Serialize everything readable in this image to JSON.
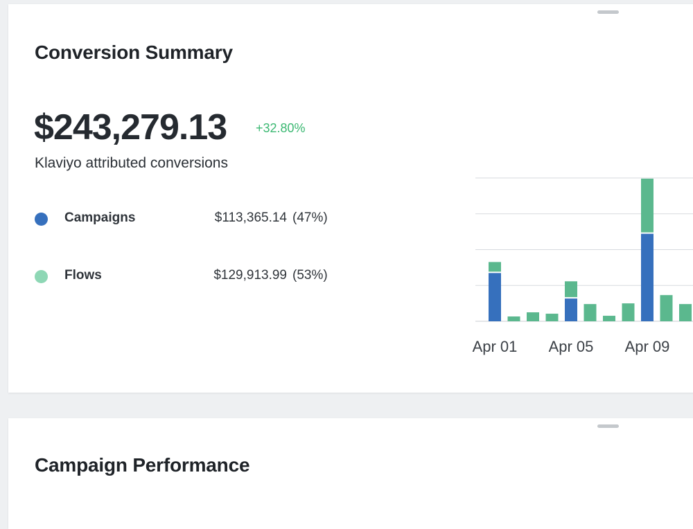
{
  "summary_card": {
    "title": "Conversion Summary",
    "total_value": "$243,279.13",
    "change": "+32.80%",
    "subtitle": "Klaviyo attributed conversions",
    "legend": [
      {
        "label": "Campaigns",
        "amount": "$113,365.14",
        "percent": "(47%)",
        "color": "#3670bd"
      },
      {
        "label": "Flows",
        "amount": "$129,913.99",
        "percent": "(53%)",
        "color": "#8ed7b5"
      }
    ]
  },
  "campaign_card": {
    "title": "Campaign Performance"
  },
  "colors": {
    "campaigns": "#3670bd",
    "flows": "#5bb88e",
    "positive": "#3bb872"
  },
  "chart_data": {
    "type": "bar",
    "stacked": true,
    "x_tick_labels": [
      "Apr 01",
      "Apr 05",
      "Apr 09"
    ],
    "categories": [
      "Apr 01",
      "Apr 02",
      "Apr 03",
      "Apr 04",
      "Apr 05",
      "Apr 06",
      "Apr 07",
      "Apr 08",
      "Apr 09",
      "Apr 10",
      "Apr 11"
    ],
    "series": [
      {
        "name": "Campaigns",
        "values": [
          70,
          0,
          0,
          0,
          33,
          0,
          0,
          0,
          127,
          0,
          0
        ]
      },
      {
        "name": "Flows",
        "values": [
          14,
          7,
          13,
          11,
          23,
          25,
          8,
          26,
          78,
          38,
          25
        ]
      }
    ],
    "ylim": [
      0,
      208
    ],
    "grid": true
  }
}
